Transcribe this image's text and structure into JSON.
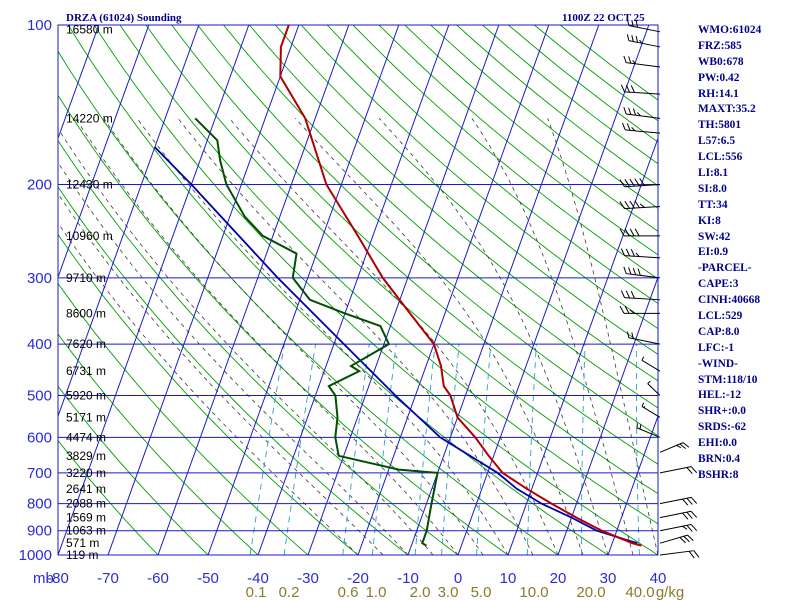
{
  "header": {
    "station": "DRZA (61024) Sounding",
    "time": "1100Z 22 OCT 25"
  },
  "indices": [
    "WMO:61024",
    "FRZ:585",
    "WB0:678",
    "PW:0.42",
    "RH:14.1",
    "MAXT:35.2",
    "TH:5801",
    "L57:6.5",
    "LCL:556",
    "LI:8.1",
    "SI:8.0",
    "TT:34",
    "KI:8",
    "SW:42",
    "EI:0.9",
    "-PARCEL-",
    "CAPE:3",
    "CINH:40668",
    "LCL:529",
    "CAP:8.0",
    "LFC:-1",
    "-WIND-",
    "STM:118/10",
    "HEL:-12",
    "SHR+:0.0",
    "SRDS:-62",
    "EHI:0.0",
    "BRN:0.4",
    "BSHR:8"
  ],
  "colors": {
    "grid": "#1a1ac8",
    "dry_adiabat": "#00a000",
    "moist_adiabat": "#3a3a3a",
    "mixing_ratio": "#2aa0c8",
    "temperature": "#b00000",
    "dewpoint": "#005000",
    "parcel": "#0000a8",
    "wind": "#000000"
  },
  "chart_data": {
    "type": "skewt",
    "title": "DRZA (61024) Sounding",
    "pressure_axis_label": "mb",
    "pressure_levels": [
      100,
      200,
      300,
      400,
      500,
      600,
      700,
      800,
      900,
      1000
    ],
    "temperature_ticks": [
      -80,
      -70,
      -60,
      -50,
      -40,
      -30,
      -20,
      -10,
      0,
      10,
      20,
      30,
      40
    ],
    "xlim": [
      -80,
      40
    ],
    "ylim": [
      1000,
      100
    ],
    "height_labels": [
      {
        "p": 102,
        "text": "16580 m"
      },
      {
        "p": 150,
        "text": "14220 m"
      },
      {
        "p": 200,
        "text": "12430 m"
      },
      {
        "p": 250,
        "text": "10960 m"
      },
      {
        "p": 300,
        "text": "9710 m"
      },
      {
        "p": 350,
        "text": "8600 m"
      },
      {
        "p": 400,
        "text": "7620 m"
      },
      {
        "p": 450,
        "text": "6731 m"
      },
      {
        "p": 500,
        "text": "5920 m"
      },
      {
        "p": 550,
        "text": "5171 m"
      },
      {
        "p": 600,
        "text": "4474 m"
      },
      {
        "p": 650,
        "text": "3829 m"
      },
      {
        "p": 700,
        "text": "3220 m"
      },
      {
        "p": 750,
        "text": "2641 m"
      },
      {
        "p": 800,
        "text": "2088 m"
      },
      {
        "p": 850,
        "text": "1569 m"
      },
      {
        "p": 900,
        "text": "1063 m"
      },
      {
        "p": 950,
        "text": "571 m"
      },
      {
        "p": 1000,
        "text": "119 m"
      }
    ],
    "mixing_ratio_labels": [
      "0.1",
      "0.2",
      "0.6",
      "1.0",
      "2.0",
      "3.0",
      "5.0",
      "10.0",
      "20.0",
      "40.0",
      "g/kg"
    ],
    "mixing_ratio_values": [
      0.1,
      0.2,
      0.6,
      1.0,
      2.0,
      3.0,
      5.0,
      10.0,
      20.0,
      40.0
    ],
    "temperature_profile": [
      {
        "p": 960,
        "t": 36
      },
      {
        "p": 950,
        "t": 34
      },
      {
        "p": 900,
        "t": 27
      },
      {
        "p": 850,
        "t": 21
      },
      {
        "p": 800,
        "t": 15
      },
      {
        "p": 750,
        "t": 9
      },
      {
        "p": 700,
        "t": 3
      },
      {
        "p": 650,
        "t": -1
      },
      {
        "p": 600,
        "t": -5
      },
      {
        "p": 550,
        "t": -10
      },
      {
        "p": 500,
        "t": -13
      },
      {
        "p": 480,
        "t": -15
      },
      {
        "p": 440,
        "t": -17
      },
      {
        "p": 400,
        "t": -20
      },
      {
        "p": 350,
        "t": -27
      },
      {
        "p": 300,
        "t": -35
      },
      {
        "p": 250,
        "t": -43
      },
      {
        "p": 200,
        "t": -53
      },
      {
        "p": 150,
        "t": -62
      },
      {
        "p": 125,
        "t": -70
      },
      {
        "p": 110,
        "t": -72
      },
      {
        "p": 100,
        "t": -72
      }
    ],
    "dewpoint_profile": [
      {
        "p": 960,
        "t": -7
      },
      {
        "p": 950,
        "t": -8
      },
      {
        "p": 900,
        "t": -8
      },
      {
        "p": 800,
        "t": -9
      },
      {
        "p": 700,
        "t": -10
      },
      {
        "p": 690,
        "t": -18
      },
      {
        "p": 650,
        "t": -31
      },
      {
        "p": 600,
        "t": -33
      },
      {
        "p": 550,
        "t": -34
      },
      {
        "p": 500,
        "t": -36
      },
      {
        "p": 480,
        "t": -38
      },
      {
        "p": 450,
        "t": -33
      },
      {
        "p": 440,
        "t": -35
      },
      {
        "p": 400,
        "t": -29
      },
      {
        "p": 370,
        "t": -32
      },
      {
        "p": 350,
        "t": -40
      },
      {
        "p": 330,
        "t": -48
      },
      {
        "p": 300,
        "t": -53
      },
      {
        "p": 270,
        "t": -54
      },
      {
        "p": 250,
        "t": -62
      },
      {
        "p": 230,
        "t": -67
      },
      {
        "p": 200,
        "t": -73
      },
      {
        "p": 180,
        "t": -76
      },
      {
        "p": 165,
        "t": -78
      },
      {
        "p": 150,
        "t": -84
      }
    ],
    "parcel_profile": [
      {
        "p": 950,
        "t": 35
      },
      {
        "p": 900,
        "t": 26
      },
      {
        "p": 850,
        "t": 20
      },
      {
        "p": 800,
        "t": 13
      },
      {
        "p": 750,
        "t": 7
      },
      {
        "p": 700,
        "t": 2
      },
      {
        "p": 600,
        "t": -12
      },
      {
        "p": 500,
        "t": -24
      },
      {
        "p": 400,
        "t": -38
      },
      {
        "p": 300,
        "t": -56
      },
      {
        "p": 200,
        "t": -80
      },
      {
        "p": 170,
        "t": -90
      }
    ],
    "wind_barbs": [
      {
        "p": 103,
        "dir": 300,
        "spd": 30
      },
      {
        "p": 110,
        "dir": 300,
        "spd": 35
      },
      {
        "p": 120,
        "dir": 290,
        "spd": 25
      },
      {
        "p": 135,
        "dir": 280,
        "spd": 30
      },
      {
        "p": 150,
        "dir": 290,
        "spd": 35
      },
      {
        "p": 160,
        "dir": 285,
        "spd": 25
      },
      {
        "p": 200,
        "dir": 260,
        "spd": 50
      },
      {
        "p": 220,
        "dir": 260,
        "spd": 45
      },
      {
        "p": 250,
        "dir": 270,
        "spd": 40
      },
      {
        "p": 275,
        "dir": 280,
        "spd": 35
      },
      {
        "p": 300,
        "dir": 290,
        "spd": 40
      },
      {
        "p": 330,
        "dir": 280,
        "spd": 30
      },
      {
        "p": 350,
        "dir": 270,
        "spd": 25
      },
      {
        "p": 400,
        "dir": 300,
        "spd": 20
      },
      {
        "p": 450,
        "dir": 330,
        "spd": 10
      },
      {
        "p": 500,
        "dir": 340,
        "spd": 10
      },
      {
        "p": 550,
        "dir": 330,
        "spd": 15
      },
      {
        "p": 600,
        "dir": 320,
        "spd": 20
      },
      {
        "p": 640,
        "dir": 40,
        "spd": 25
      },
      {
        "p": 700,
        "dir": 60,
        "spd": 20
      },
      {
        "p": 800,
        "dir": 60,
        "spd": 30
      },
      {
        "p": 850,
        "dir": 60,
        "spd": 30
      },
      {
        "p": 900,
        "dir": 60,
        "spd": 25
      },
      {
        "p": 950,
        "dir": 50,
        "spd": 30
      },
      {
        "p": 1000,
        "dir": 70,
        "spd": 20
      }
    ]
  }
}
